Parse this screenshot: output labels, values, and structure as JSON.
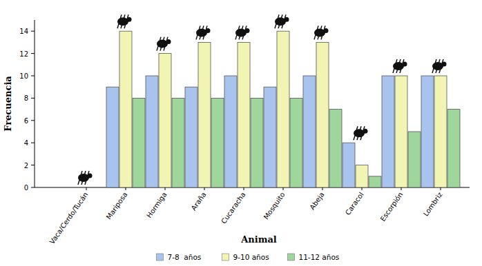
{
  "chart_data": {
    "type": "bar",
    "x_label": "Animal",
    "y_label": "Frecuencia",
    "categories": [
      "Vaca/Cerdo/Tucán",
      "Mariposa",
      "Hormiga",
      "Araña",
      "Cucaracha",
      "Mosquito",
      "Abeja",
      "Caracol",
      "Escorpión",
      "Lombriz"
    ],
    "series": [
      {
        "name": "7-8  años",
        "color": "#a8c4ee",
        "values": [
          0,
          9,
          10,
          9,
          10,
          9,
          10,
          4,
          10,
          10
        ]
      },
      {
        "name": "9-10 años",
        "color": "#f1f4b2",
        "values": [
          0,
          14,
          12,
          13,
          13,
          14,
          13,
          2,
          10,
          10
        ]
      },
      {
        "name": "11-12 años",
        "color": "#9fd69c",
        "values": [
          0,
          8,
          8,
          8,
          8,
          8,
          7,
          1,
          5,
          7
        ]
      }
    ],
    "ylim": [
      0,
      15
    ],
    "yticks": [
      0,
      2,
      4,
      6,
      8,
      10,
      12,
      14
    ],
    "grid": false,
    "legend": "bottom"
  }
}
